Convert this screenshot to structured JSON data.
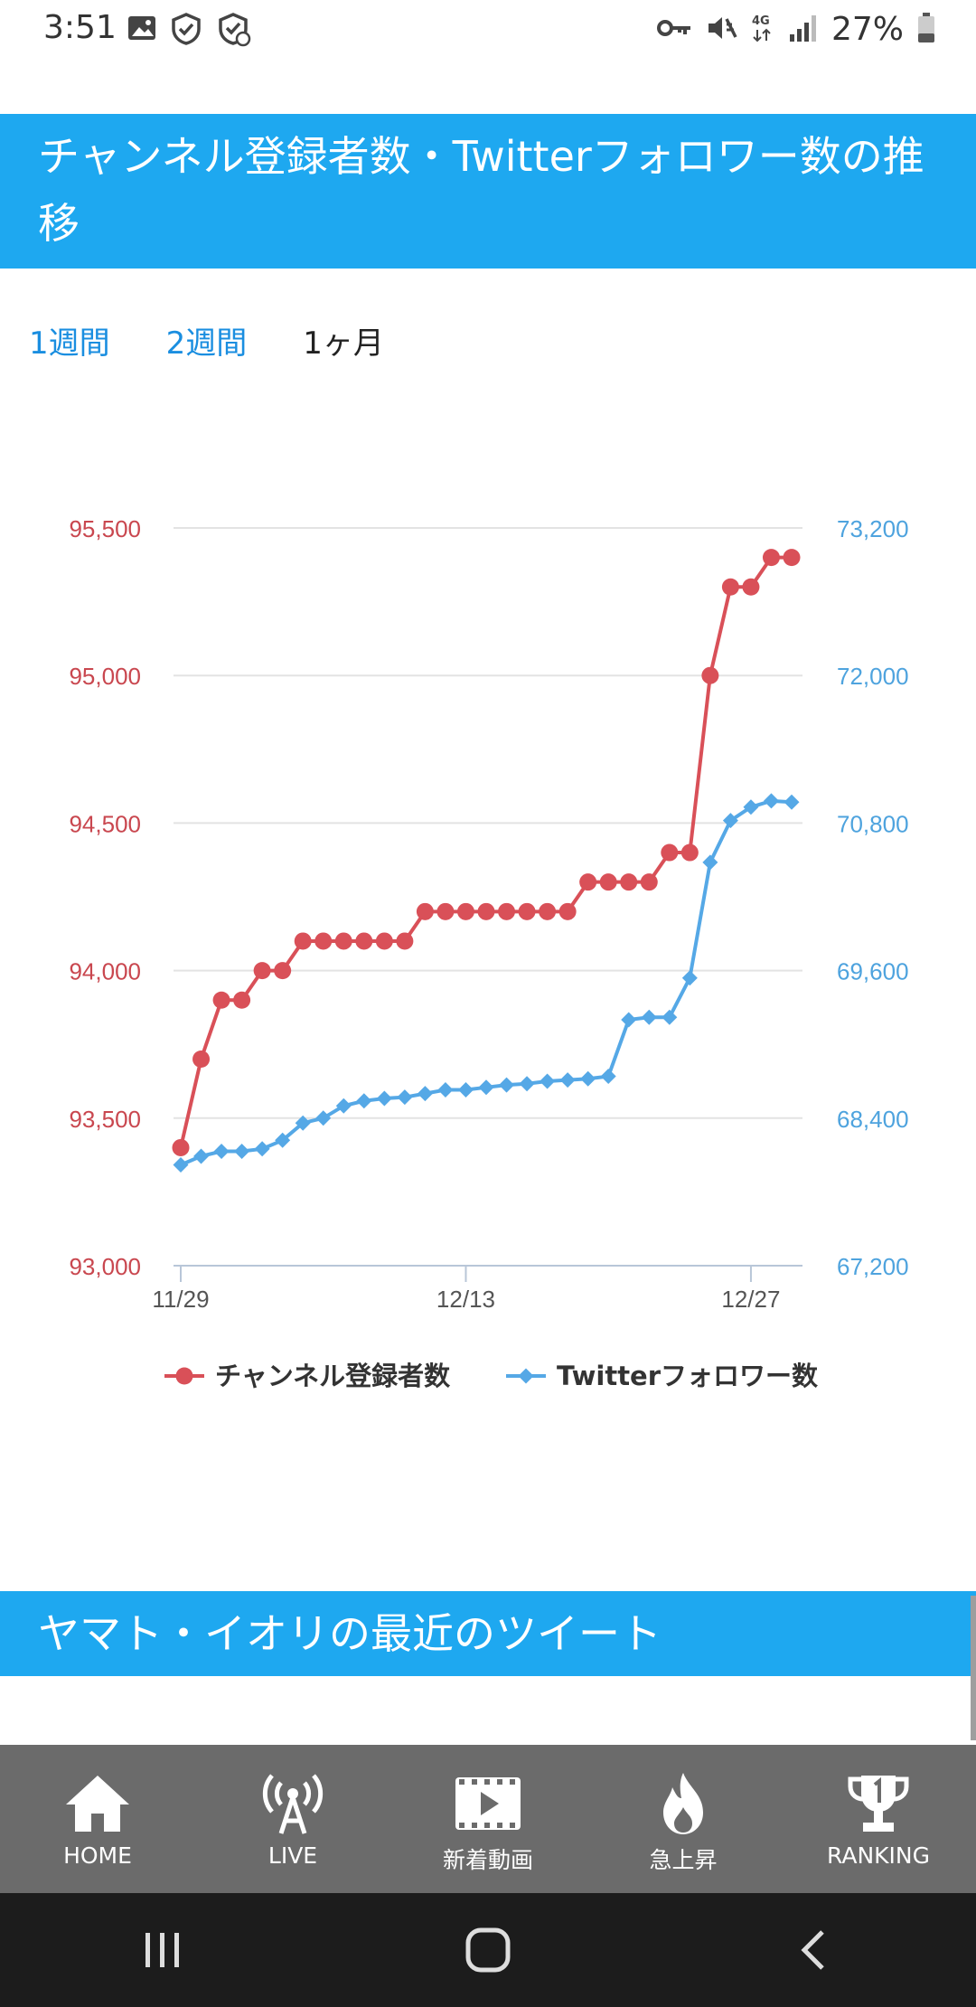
{
  "status_bar": {
    "time": "3:51",
    "battery": "27%",
    "network": "4G"
  },
  "chart_section": {
    "title": "チャンネル登録者数・Twitterフォロワー数の推移"
  },
  "tabs": [
    {
      "label": "1週間",
      "active": false
    },
    {
      "label": "2週間",
      "active": false
    },
    {
      "label": "1ヶ月",
      "active": true
    }
  ],
  "chart_data": {
    "type": "line",
    "x": [
      "11/29",
      "11/30",
      "12/1",
      "12/2",
      "12/3",
      "12/4",
      "12/5",
      "12/6",
      "12/7",
      "12/8",
      "12/9",
      "12/10",
      "12/11",
      "12/12",
      "12/13",
      "12/14",
      "12/15",
      "12/16",
      "12/17",
      "12/18",
      "12/19",
      "12/20",
      "12/21",
      "12/22",
      "12/23",
      "12/24",
      "12/25",
      "12/26",
      "12/27",
      "12/28",
      "12/29"
    ],
    "x_ticks": [
      "11/29",
      "12/13",
      "12/27"
    ],
    "series": [
      {
        "name": "チャンネル登録者数",
        "axis": "left",
        "color": "#d95058",
        "marker": "circle",
        "values": [
          93400,
          93700,
          93900,
          93900,
          94000,
          94000,
          94100,
          94100,
          94100,
          94100,
          94100,
          94100,
          94200,
          94200,
          94200,
          94200,
          94200,
          94200,
          94200,
          94200,
          94300,
          94300,
          94300,
          94300,
          94400,
          94400,
          95000,
          95300,
          95300,
          95400,
          95400
        ]
      },
      {
        "name": "Twitterフォロワー数",
        "axis": "right",
        "color": "#55a8e6",
        "marker": "diamond",
        "values": [
          68020,
          68090,
          68130,
          68130,
          68150,
          68220,
          68360,
          68400,
          68500,
          68540,
          68560,
          68570,
          68600,
          68630,
          68630,
          68650,
          68670,
          68680,
          68700,
          68710,
          68720,
          68740,
          69200,
          69220,
          69220,
          69540,
          70480,
          70820,
          70930,
          70980,
          70970
        ]
      }
    ],
    "left_axis": {
      "min": 93000,
      "max": 95500,
      "ticks": [
        "93,000",
        "93,500",
        "94,000",
        "94,500",
        "95,000",
        "95,500"
      ],
      "color": "#c9474f"
    },
    "right_axis": {
      "min": 67200,
      "max": 73200,
      "ticks": [
        "67,200",
        "68,400",
        "69,600",
        "70,800",
        "72,000",
        "73,200"
      ],
      "color": "#4ea3de"
    },
    "grid": true,
    "legend_position": "bottom"
  },
  "tweets_section": {
    "title": "ヤマト・イオリの最近のツイート"
  },
  "bottom_nav": [
    {
      "label": "HOME",
      "icon": "home-icon"
    },
    {
      "label": "LIVE",
      "icon": "broadcast-icon"
    },
    {
      "label": "新着動画",
      "icon": "video-icon"
    },
    {
      "label": "急上昇",
      "icon": "flame-icon"
    },
    {
      "label": "RANKING",
      "icon": "trophy-icon"
    }
  ]
}
